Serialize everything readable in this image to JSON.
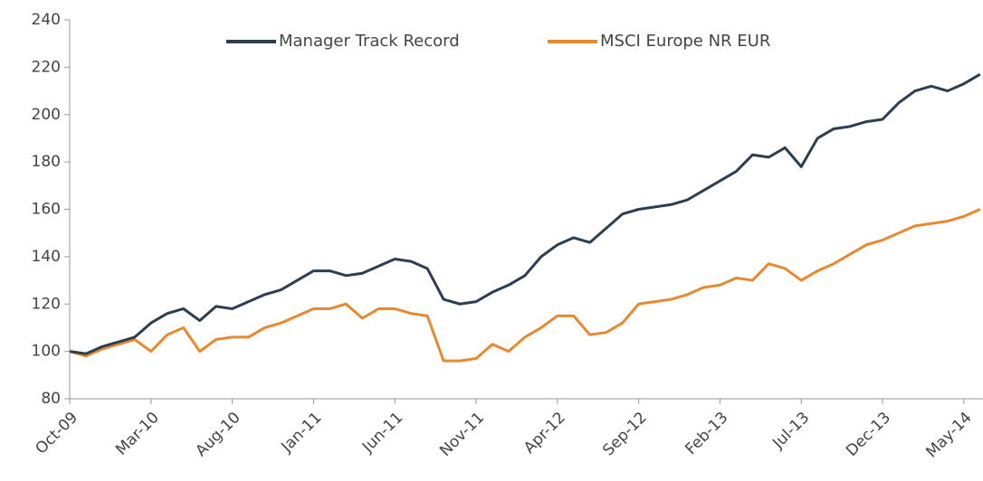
{
  "chart_data": {
    "type": "line",
    "categories": [
      "Oct-09",
      null,
      null,
      null,
      null,
      "Mar-10",
      null,
      null,
      null,
      null,
      "Aug-10",
      null,
      null,
      null,
      null,
      "Jan-11",
      null,
      null,
      null,
      null,
      "Jun-11",
      null,
      null,
      null,
      null,
      "Nov-11",
      null,
      null,
      null,
      null,
      "Apr-12",
      null,
      null,
      null,
      null,
      "Sep-12",
      null,
      null,
      null,
      null,
      "Feb-13",
      null,
      null,
      null,
      null,
      "Jul-13",
      null,
      null,
      null,
      null,
      "Dec-13",
      null,
      null,
      null,
      null,
      "May-14",
      null
    ],
    "series": [
      {
        "name": "Manager Track Record",
        "color": "#2d3e50",
        "values": [
          100,
          99,
          102,
          104,
          106,
          112,
          116,
          118,
          113,
          119,
          118,
          121,
          124,
          126,
          130,
          134,
          134,
          132,
          133,
          136,
          139,
          138,
          135,
          122,
          120,
          121,
          125,
          128,
          132,
          140,
          145,
          148,
          146,
          152,
          158,
          160,
          161,
          162,
          164,
          168,
          172,
          176,
          183,
          182,
          186,
          178,
          190,
          194,
          195,
          197,
          198,
          205,
          210,
          212,
          210,
          213,
          217
        ]
      },
      {
        "name": "MSCI Europe NR EUR",
        "color": "#e8892f",
        "values": [
          100,
          98,
          101,
          103,
          105,
          100,
          107,
          110,
          100,
          105,
          106,
          106,
          110,
          112,
          115,
          118,
          118,
          120,
          114,
          118,
          118,
          116,
          115,
          96,
          96,
          97,
          103,
          100,
          106,
          110,
          115,
          115,
          107,
          108,
          112,
          120,
          121,
          122,
          124,
          127,
          128,
          131,
          130,
          137,
          135,
          130,
          134,
          137,
          141,
          145,
          147,
          150,
          153,
          154,
          155,
          157,
          160
        ]
      }
    ],
    "ylim": [
      80,
      240
    ],
    "yticks": [
      80,
      100,
      120,
      140,
      160,
      180,
      200,
      220,
      240
    ],
    "grid": false,
    "legend": "top"
  }
}
